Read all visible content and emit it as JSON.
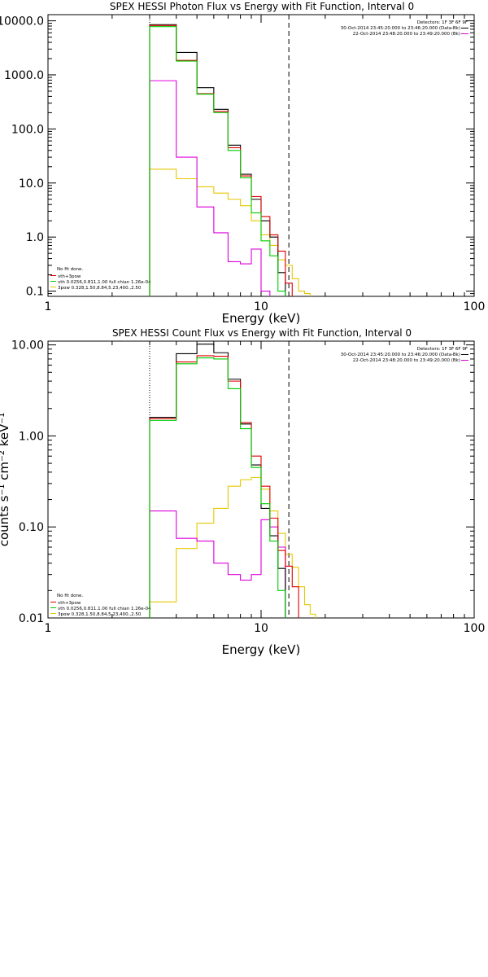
{
  "chart_data": [
    {
      "type": "line",
      "title": "SPEX HESSI Photon Flux vs Energy with Fit Function, Interval 0",
      "xlabel": "Energy (keV)",
      "ylabel": "",
      "x_scale": "log",
      "y_scale": "log",
      "xlim": [
        1,
        100
      ],
      "ylim": [
        0.08,
        13000
      ],
      "x_ticks": [
        "1",
        "10",
        "100"
      ],
      "y_ticks": [
        {
          "value": 10000,
          "label": "10000.0"
        },
        {
          "value": 1000,
          "label": "1000.0"
        },
        {
          "value": 100,
          "label": "100.0"
        },
        {
          "value": 10,
          "label": "10.0"
        },
        {
          "value": 1,
          "label": "1.0"
        },
        {
          "value": 0.1,
          "label": "0.1"
        }
      ],
      "bin_edges": [
        3,
        4,
        5,
        6,
        7,
        8,
        9,
        10,
        11,
        12,
        13,
        14,
        15,
        16,
        17,
        18
      ],
      "series": [
        {
          "color": "#000000",
          "values": [
            8500,
            2600,
            580,
            230,
            50,
            14.5,
            5.0,
            2.0,
            1.0,
            0.22
          ]
        },
        {
          "color": "#dd0000",
          "values": [
            8200,
            1850,
            450,
            210,
            45,
            13.5,
            5.6,
            2.4,
            1.1,
            0.55,
            0.14
          ]
        },
        {
          "color": "#00cc00",
          "values": [
            7800,
            1800,
            440,
            200,
            40,
            12.5,
            2.8,
            0.85,
            0.45,
            0.1
          ]
        },
        {
          "color": "#dd00dd",
          "values": [
            780,
            30,
            3.6,
            1.2,
            0.35,
            0.32,
            0.6,
            0.1
          ]
        },
        {
          "color": "#e6c800",
          "values": [
            18,
            12,
            8.5,
            6.5,
            5.0,
            3.8,
            2.0,
            1.1,
            0.7,
            0.38,
            0.3,
            0.17,
            0.1,
            0.09
          ]
        }
      ],
      "vlines": [
        {
          "x": 3.0,
          "style": "dotted"
        },
        {
          "x": 13.5,
          "style": "dashed"
        }
      ],
      "header": [
        "Detectors: 1F 3F 6F 9F",
        "30-Oct-2014 23:45:20.000 to 23:46:20.000 (Data-Bk)",
        "22-Oct-2014 23:48:20.000 to 23:49:20.000 (Bk)"
      ],
      "legend": {
        "placement": "bottom-left",
        "heading": "No fit done.",
        "entries": [
          {
            "label": "vth+3pow",
            "color": "#dd0000"
          },
          {
            "label": "vth 0.0256,0.811,1.00  full chian 1.26e-04",
            "color": "#00cc00"
          },
          {
            "label": "3pow 0.328,1.50,8.84,5.23,400.,2.50",
            "color": "#e6c800"
          }
        ]
      }
    },
    {
      "type": "line",
      "title": "SPEX HESSI Count Flux vs Energy with Fit Function, Interval 0",
      "xlabel": "Energy (keV)",
      "ylabel": "counts s⁻¹ cm⁻² keV⁻¹",
      "x_scale": "log",
      "y_scale": "log",
      "xlim": [
        1,
        100
      ],
      "ylim": [
        0.01,
        11
      ],
      "x_ticks": [
        "1",
        "10",
        "100"
      ],
      "y_ticks": [
        {
          "value": 10,
          "label": "10.00"
        },
        {
          "value": 1,
          "label": "1.00"
        },
        {
          "value": 0.1,
          "label": "0.10"
        },
        {
          "value": 0.01,
          "label": "0.01"
        }
      ],
      "bin_edges": [
        3,
        4,
        5,
        6,
        7,
        8,
        9,
        10,
        11,
        12,
        13,
        14,
        15,
        16,
        17,
        18
      ],
      "series": [
        {
          "color": "#000000",
          "values": [
            1.6,
            8.0,
            10.2,
            8.2,
            4.2,
            1.35,
            0.48,
            0.16,
            0.08,
            0.035
          ]
        },
        {
          "color": "#dd0000",
          "values": [
            1.55,
            6.5,
            7.6,
            7.5,
            4.0,
            1.4,
            0.6,
            0.28,
            0.125,
            0.055,
            0.037,
            0.022
          ]
        },
        {
          "color": "#00cc00",
          "values": [
            1.48,
            6.2,
            7.2,
            7.0,
            3.3,
            1.2,
            0.45,
            0.18,
            0.07,
            0.02
          ]
        },
        {
          "color": "#dd00dd",
          "values": [
            0.15,
            0.075,
            0.07,
            0.04,
            0.03,
            0.026,
            0.03,
            0.12,
            0.1,
            0.06
          ]
        },
        {
          "color": "#e6c800",
          "values": [
            0.015,
            0.058,
            0.11,
            0.16,
            0.28,
            0.33,
            0.35,
            0.26,
            0.15,
            0.085,
            0.05,
            0.036,
            0.022,
            0.014,
            0.011
          ]
        }
      ],
      "vlines": [
        {
          "x": 3.0,
          "style": "dotted"
        },
        {
          "x": 13.5,
          "style": "dashed"
        }
      ],
      "header": [
        "Detectors: 1F 3F 6F 9F",
        "30-Oct-2014 23:45:20.000 to 23:46:20.000 (Data-Bk)",
        "22-Oct-2014 23:48:20.000 to 23:49:20.000 (Bk)"
      ],
      "legend": {
        "placement": "bottom-left",
        "heading": "No fit done.",
        "entries": [
          {
            "label": "vth+3pow",
            "color": "#dd0000"
          },
          {
            "label": "vth 0.0256,0.811,1.00  full chian 1.26e-04",
            "color": "#00cc00"
          },
          {
            "label": "3pow 0.328,1.50,8.84,5.23,400.,2.50",
            "color": "#e6c800"
          }
        ]
      }
    }
  ]
}
